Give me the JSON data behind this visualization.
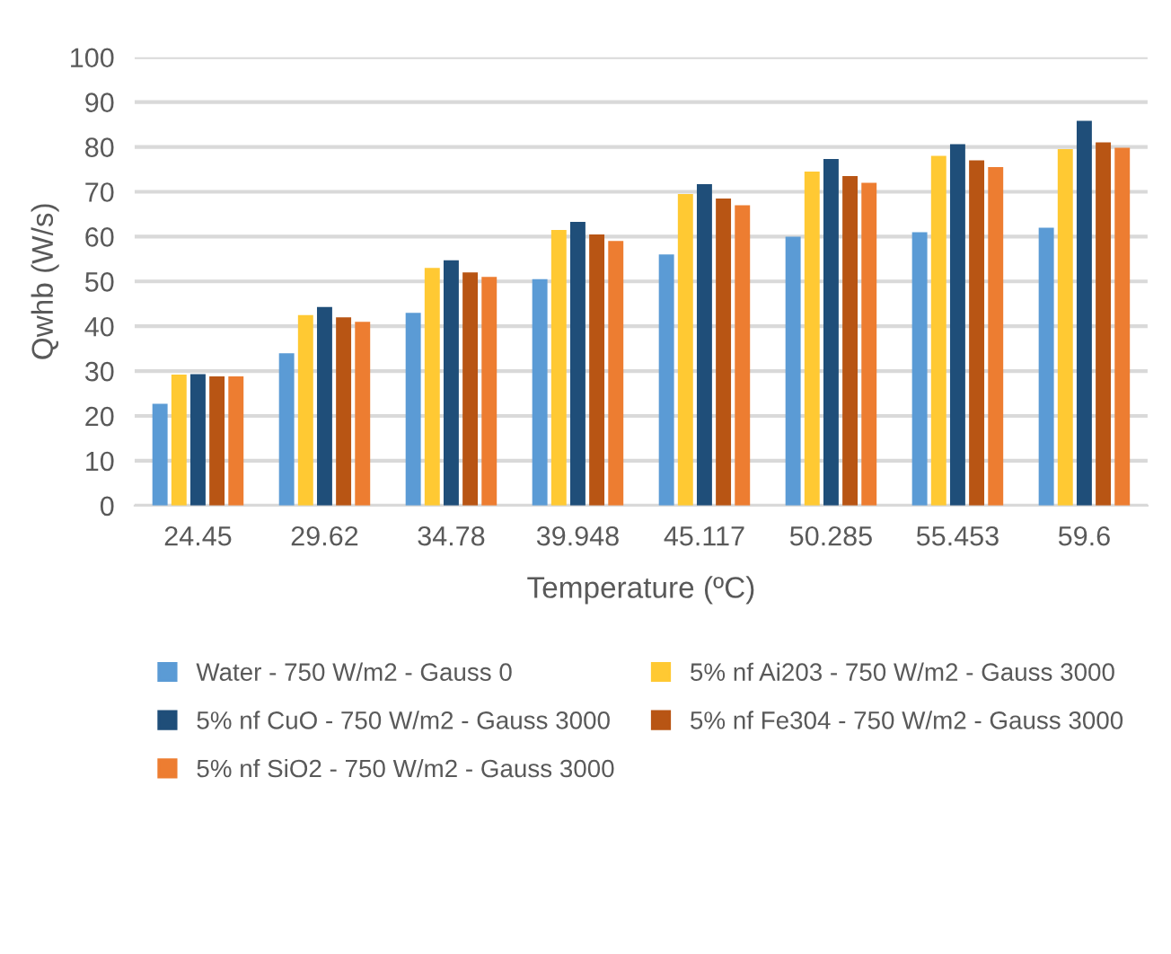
{
  "chart_data": {
    "type": "bar",
    "xlabel": "Temperature (ºC)",
    "ylabel": "Qwhb (W/s)",
    "categories": [
      "24.45",
      "29.62",
      "34.78",
      "39.948",
      "45.117",
      "50.285",
      "55.453",
      "59.6"
    ],
    "series": [
      {
        "name": "Water - 750 W/m2 - Gauss 0",
        "color": "#5b9bd5",
        "values": [
          22.7,
          34,
          43,
          50.5,
          56,
          60,
          61,
          62
        ]
      },
      {
        "name": "5% nf Ai203 - 750 W/m2 - Gauss 3000",
        "color": "#ffc933",
        "values": [
          29.2,
          42.5,
          53,
          61.5,
          69.5,
          74.5,
          78,
          79.5
        ]
      },
      {
        "name": "5% nf CuO - 750 W/m2 - Gauss 3000",
        "color": "#1f4e79",
        "values": [
          29.3,
          44.3,
          54.7,
          63.3,
          71.7,
          77.3,
          80.6,
          85.8
        ]
      },
      {
        "name": "5% nf Fe304 - 750 W/m2 - Gauss 3000",
        "color": "#b85514",
        "values": [
          28.8,
          42,
          52,
          60.5,
          68.5,
          73.5,
          77,
          81
        ]
      },
      {
        "name": "5% nf SiO2 - 750 W/m2 - Gauss 3000",
        "color": "#ed7d31",
        "values": [
          28.8,
          41,
          51,
          59,
          67,
          72,
          75.5,
          79.8
        ]
      }
    ],
    "ylim": [
      0,
      100
    ],
    "yticks": [
      0,
      10,
      20,
      30,
      40,
      50,
      60,
      70,
      80,
      90,
      100
    ],
    "grid": "y",
    "legend": "bottom"
  }
}
